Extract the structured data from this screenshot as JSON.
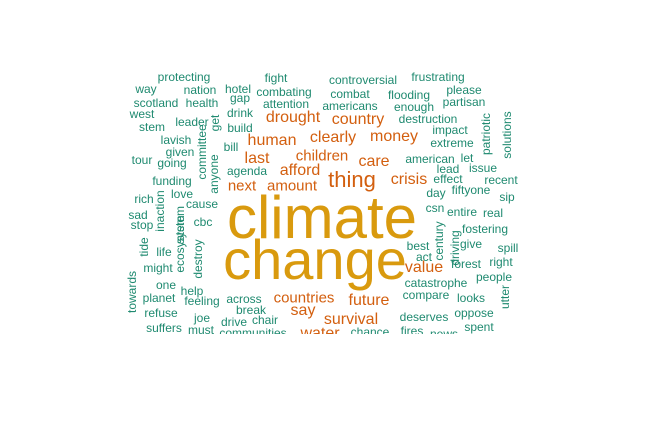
{
  "colors": {
    "tier1": "#d99a0e",
    "tier2": "#d35f0f",
    "tier3": "#1f8a70"
  },
  "words": [
    {
      "text": "climate",
      "tier": 1
    },
    {
      "text": "change",
      "tier": 1
    },
    {
      "text": "thing",
      "tier": 2
    },
    {
      "text": "human",
      "tier": 2
    },
    {
      "text": "clearly",
      "tier": 2
    },
    {
      "text": "money",
      "tier": 2
    },
    {
      "text": "drought",
      "tier": 2
    },
    {
      "text": "country",
      "tier": 2
    },
    {
      "text": "last",
      "tier": 2
    },
    {
      "text": "children",
      "tier": 2
    },
    {
      "text": "care",
      "tier": 2
    },
    {
      "text": "afford",
      "tier": 2
    },
    {
      "text": "crisis",
      "tier": 2
    },
    {
      "text": "next",
      "tier": 2
    },
    {
      "text": "amount",
      "tier": 2
    },
    {
      "text": "value",
      "tier": 2
    },
    {
      "text": "countries",
      "tier": 2
    },
    {
      "text": "future",
      "tier": 2
    },
    {
      "text": "say",
      "tier": 2
    },
    {
      "text": "survival",
      "tier": 2
    },
    {
      "text": "water",
      "tier": 2
    },
    {
      "text": "protecting",
      "tier": 3
    },
    {
      "text": "fight",
      "tier": 3
    },
    {
      "text": "controversial",
      "tier": 3
    },
    {
      "text": "frustrating",
      "tier": 3
    },
    {
      "text": "way",
      "tier": 3
    },
    {
      "text": "nation",
      "tier": 3
    },
    {
      "text": "hotel",
      "tier": 3
    },
    {
      "text": "combating",
      "tier": 3
    },
    {
      "text": "combat",
      "tier": 3
    },
    {
      "text": "flooding",
      "tier": 3
    },
    {
      "text": "please",
      "tier": 3
    },
    {
      "text": "scotland",
      "tier": 3
    },
    {
      "text": "health",
      "tier": 3
    },
    {
      "text": "gap",
      "tier": 3
    },
    {
      "text": "attention",
      "tier": 3
    },
    {
      "text": "americans",
      "tier": 3
    },
    {
      "text": "enough",
      "tier": 3
    },
    {
      "text": "partisan",
      "tier": 3
    },
    {
      "text": "west",
      "tier": 3
    },
    {
      "text": "drink",
      "tier": 3
    },
    {
      "text": "destruction",
      "tier": 3
    },
    {
      "text": "leader",
      "tier": 3
    },
    {
      "text": "stem",
      "tier": 3
    },
    {
      "text": "get",
      "tier": 3
    },
    {
      "text": "build",
      "tier": 3
    },
    {
      "text": "impact",
      "tier": 3
    },
    {
      "text": "patriotic",
      "tier": 3
    },
    {
      "text": "solutions",
      "tier": 3
    },
    {
      "text": "lavish",
      "tier": 3
    },
    {
      "text": "committee",
      "tier": 3
    },
    {
      "text": "extreme",
      "tier": 3
    },
    {
      "text": "given",
      "tier": 3
    },
    {
      "text": "bill",
      "tier": 3
    },
    {
      "text": "tour",
      "tier": 3
    },
    {
      "text": "going",
      "tier": 3
    },
    {
      "text": "anyone",
      "tier": 3
    },
    {
      "text": "american",
      "tier": 3
    },
    {
      "text": "let",
      "tier": 3
    },
    {
      "text": "agenda",
      "tier": 3
    },
    {
      "text": "lead",
      "tier": 3
    },
    {
      "text": "issue",
      "tier": 3
    },
    {
      "text": "funding",
      "tier": 3
    },
    {
      "text": "effect",
      "tier": 3
    },
    {
      "text": "recent",
      "tier": 3
    },
    {
      "text": "love",
      "tier": 3
    },
    {
      "text": "day",
      "tier": 3
    },
    {
      "text": "fiftyone",
      "tier": 3
    },
    {
      "text": "rich",
      "tier": 3
    },
    {
      "text": "cause",
      "tier": 3
    },
    {
      "text": "sip",
      "tier": 3
    },
    {
      "text": "inaction",
      "tier": 3
    },
    {
      "text": "csn",
      "tier": 3
    },
    {
      "text": "sad",
      "tier": 3
    },
    {
      "text": "system",
      "tier": 3
    },
    {
      "text": "entire",
      "tier": 3
    },
    {
      "text": "real",
      "tier": 3
    },
    {
      "text": "stop",
      "tier": 3
    },
    {
      "text": "cbc",
      "tier": 3
    },
    {
      "text": "century",
      "tier": 3
    },
    {
      "text": "fostering",
      "tier": 3
    },
    {
      "text": "tide",
      "tier": 3
    },
    {
      "text": "driving",
      "tier": 3
    },
    {
      "text": "best",
      "tier": 3
    },
    {
      "text": "give",
      "tier": 3
    },
    {
      "text": "spill",
      "tier": 3
    },
    {
      "text": "life",
      "tier": 3
    },
    {
      "text": "ecosystem",
      "tier": 3
    },
    {
      "text": "destroy",
      "tier": 3
    },
    {
      "text": "act",
      "tier": 3
    },
    {
      "text": "forest",
      "tier": 3
    },
    {
      "text": "right",
      "tier": 3
    },
    {
      "text": "might",
      "tier": 3
    },
    {
      "text": "people",
      "tier": 3
    },
    {
      "text": "towards",
      "tier": 3
    },
    {
      "text": "one",
      "tier": 3
    },
    {
      "text": "catastrophe",
      "tier": 3
    },
    {
      "text": "help",
      "tier": 3
    },
    {
      "text": "compare",
      "tier": 3
    },
    {
      "text": "looks",
      "tier": 3
    },
    {
      "text": "utter",
      "tier": 3
    },
    {
      "text": "planet",
      "tier": 3
    },
    {
      "text": "feeling",
      "tier": 3
    },
    {
      "text": "across",
      "tier": 3
    },
    {
      "text": "break",
      "tier": 3
    },
    {
      "text": "refuse",
      "tier": 3
    },
    {
      "text": "oppose",
      "tier": 3
    },
    {
      "text": "joe",
      "tier": 3
    },
    {
      "text": "drive",
      "tier": 3
    },
    {
      "text": "chair",
      "tier": 3
    },
    {
      "text": "deserves",
      "tier": 3
    },
    {
      "text": "fires",
      "tier": 3
    },
    {
      "text": "suffers",
      "tier": 3
    },
    {
      "text": "must",
      "tier": 3
    },
    {
      "text": "communities",
      "tier": 3
    },
    {
      "text": "chance",
      "tier": 3
    },
    {
      "text": "spent",
      "tier": 3
    },
    {
      "text": "news",
      "tier": 3
    }
  ]
}
